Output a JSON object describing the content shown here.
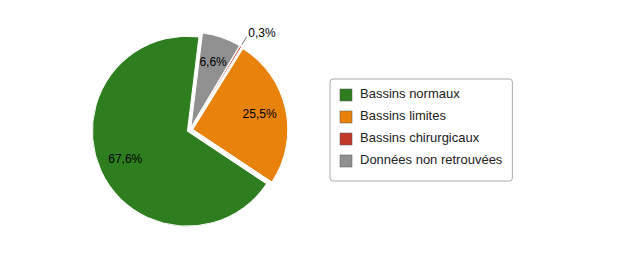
{
  "chart_data": {
    "type": "pie",
    "categories": [
      "Bassins normaux",
      "Bassins limites",
      "Bassins chirurgicaux",
      "Données non retrouvées"
    ],
    "values": [
      67.6,
      25.5,
      0.3,
      6.6
    ],
    "value_labels": [
      "67,6%",
      "25,5%",
      "0,3%",
      "6,6%"
    ],
    "colors": [
      "#2e7d1e",
      "#e8820a",
      "#c0392b",
      "#909090"
    ],
    "data_labels": true,
    "legend": "right"
  }
}
